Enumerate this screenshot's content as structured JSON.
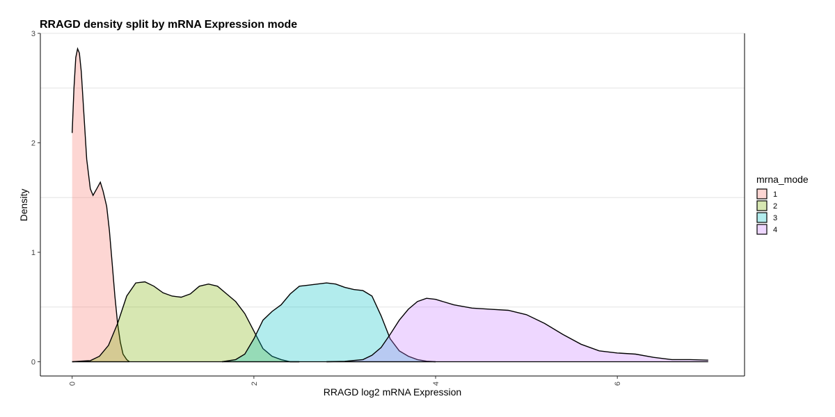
{
  "chart_data": {
    "type": "area",
    "title": "RRAGD density split by mRNA Expression mode",
    "xlabel": "RRAGD log2 mRNA Expression",
    "ylabel": "Density",
    "xlim": [
      -0.35,
      7.4
    ],
    "ylim": [
      -0.13,
      3.0
    ],
    "x_ticks": [
      0,
      2,
      4,
      6
    ],
    "x_tick_labels": [
      "0",
      "2",
      "4",
      "6"
    ],
    "y_ticks": [
      0,
      1,
      2,
      3
    ],
    "y_tick_labels": [
      "0",
      "1",
      "2",
      "3"
    ],
    "grid": false,
    "legend": {
      "title": "mrna_mode",
      "placement": "right"
    },
    "series": [
      {
        "name": "1",
        "color": "#F8766D",
        "points": [
          [
            0.0,
            2.09
          ],
          [
            0.02,
            2.5
          ],
          [
            0.04,
            2.78
          ],
          [
            0.06,
            2.86
          ],
          [
            0.08,
            2.82
          ],
          [
            0.1,
            2.65
          ],
          [
            0.13,
            2.25
          ],
          [
            0.16,
            1.85
          ],
          [
            0.2,
            1.58
          ],
          [
            0.23,
            1.52
          ],
          [
            0.27,
            1.58
          ],
          [
            0.31,
            1.64
          ],
          [
            0.34,
            1.56
          ],
          [
            0.38,
            1.42
          ],
          [
            0.41,
            1.2
          ],
          [
            0.44,
            0.9
          ],
          [
            0.47,
            0.6
          ],
          [
            0.5,
            0.35
          ],
          [
            0.53,
            0.18
          ],
          [
            0.56,
            0.07
          ],
          [
            0.6,
            0.02
          ],
          [
            0.63,
            0.0
          ]
        ]
      },
      {
        "name": "2",
        "color": "#7CAE00",
        "points": [
          [
            0.0,
            0.0
          ],
          [
            0.2,
            0.01
          ],
          [
            0.3,
            0.05
          ],
          [
            0.4,
            0.15
          ],
          [
            0.5,
            0.35
          ],
          [
            0.6,
            0.6
          ],
          [
            0.7,
            0.72
          ],
          [
            0.8,
            0.73
          ],
          [
            0.9,
            0.69
          ],
          [
            1.0,
            0.63
          ],
          [
            1.1,
            0.6
          ],
          [
            1.2,
            0.59
          ],
          [
            1.3,
            0.62
          ],
          [
            1.4,
            0.69
          ],
          [
            1.5,
            0.71
          ],
          [
            1.6,
            0.69
          ],
          [
            1.7,
            0.62
          ],
          [
            1.8,
            0.55
          ],
          [
            1.9,
            0.44
          ],
          [
            2.0,
            0.28
          ],
          [
            2.1,
            0.12
          ],
          [
            2.2,
            0.05
          ],
          [
            2.3,
            0.02
          ],
          [
            2.4,
            0.0
          ],
          [
            2.5,
            0.0
          ]
        ]
      },
      {
        "name": "3",
        "color": "#00BFC4",
        "points": [
          [
            1.65,
            0.0
          ],
          [
            1.8,
            0.02
          ],
          [
            1.9,
            0.07
          ],
          [
            2.0,
            0.21
          ],
          [
            2.1,
            0.38
          ],
          [
            2.2,
            0.46
          ],
          [
            2.3,
            0.52
          ],
          [
            2.4,
            0.62
          ],
          [
            2.5,
            0.69
          ],
          [
            2.6,
            0.7
          ],
          [
            2.7,
            0.71
          ],
          [
            2.8,
            0.72
          ],
          [
            2.9,
            0.71
          ],
          [
            3.0,
            0.68
          ],
          [
            3.1,
            0.66
          ],
          [
            3.2,
            0.65
          ],
          [
            3.3,
            0.6
          ],
          [
            3.4,
            0.42
          ],
          [
            3.5,
            0.21
          ],
          [
            3.6,
            0.1
          ],
          [
            3.7,
            0.05
          ],
          [
            3.8,
            0.02
          ],
          [
            3.9,
            0.005
          ],
          [
            4.0,
            0.0
          ]
        ]
      },
      {
        "name": "4",
        "color": "#C77CFF",
        "points": [
          [
            2.8,
            0.0
          ],
          [
            3.0,
            0.004
          ],
          [
            3.2,
            0.02
          ],
          [
            3.3,
            0.06
          ],
          [
            3.4,
            0.13
          ],
          [
            3.5,
            0.25
          ],
          [
            3.6,
            0.38
          ],
          [
            3.7,
            0.48
          ],
          [
            3.8,
            0.55
          ],
          [
            3.9,
            0.58
          ],
          [
            4.0,
            0.57
          ],
          [
            4.2,
            0.52
          ],
          [
            4.4,
            0.49
          ],
          [
            4.6,
            0.48
          ],
          [
            4.8,
            0.47
          ],
          [
            5.0,
            0.43
          ],
          [
            5.2,
            0.35
          ],
          [
            5.4,
            0.25
          ],
          [
            5.6,
            0.16
          ],
          [
            5.8,
            0.1
          ],
          [
            6.0,
            0.08
          ],
          [
            6.2,
            0.07
          ],
          [
            6.4,
            0.04
          ],
          [
            6.6,
            0.02
          ],
          [
            6.8,
            0.02
          ],
          [
            7.0,
            0.015
          ]
        ]
      }
    ]
  }
}
